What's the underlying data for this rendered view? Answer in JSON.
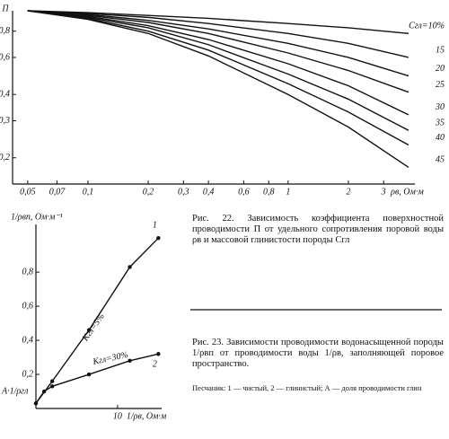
{
  "chart_data": [
    {
      "type": "line",
      "xlog": true,
      "ylog": true,
      "ylabel": "П",
      "xlabel": "ρв, Ом·м",
      "xlim": [
        0.042,
        4.3
      ],
      "ylim": [
        0.15,
        1
      ],
      "xticks": [
        {
          "value": 0.05,
          "label": "0,05"
        },
        {
          "value": 0.07,
          "label": "0,07"
        },
        {
          "value": 0.1,
          "label": "0,1"
        },
        {
          "value": 0.2,
          "label": "0,2"
        },
        {
          "value": 0.3,
          "label": "0,3"
        },
        {
          "value": 0.4,
          "label": "0,4"
        },
        {
          "value": 0.6,
          "label": "0,6"
        },
        {
          "value": 0.8,
          "label": "0,8"
        },
        1,
        2,
        3
      ],
      "yticks": [
        {
          "value": 0.2,
          "label": "0,2"
        },
        {
          "value": 0.3,
          "label": "0,3"
        },
        {
          "value": 0.4,
          "label": "0,4"
        },
        {
          "value": 0.6,
          "label": "0,6"
        },
        {
          "value": 0.8,
          "label": "0,8"
        }
      ],
      "x": [
        0.05,
        0.1,
        0.2,
        0.4,
        1,
        2,
        4
      ],
      "series": [
        {
          "name": "Сгл=10%",
          "color": "#111",
          "values": [
            1,
            0.98,
            0.95,
            0.92,
            0.87,
            0.83,
            0.78
          ]
        },
        {
          "name": "15",
          "color": "#111",
          "values": [
            1,
            0.97,
            0.93,
            0.87,
            0.78,
            0.7,
            0.6
          ]
        },
        {
          "name": "20",
          "color": "#111",
          "values": [
            1,
            0.96,
            0.9,
            0.82,
            0.7,
            0.6,
            0.49
          ]
        },
        {
          "name": "25",
          "color": "#111",
          "values": [
            1,
            0.95,
            0.88,
            0.78,
            0.63,
            0.52,
            0.41
          ]
        },
        {
          "name": "30",
          "color": "#111",
          "values": [
            1,
            0.94,
            0.85,
            0.73,
            0.56,
            0.44,
            0.32
          ]
        },
        {
          "name": "35",
          "color": "#111",
          "values": [
            1,
            0.93,
            0.83,
            0.69,
            0.5,
            0.38,
            0.27
          ]
        },
        {
          "name": "40",
          "color": "#111",
          "values": [
            1,
            0.92,
            0.8,
            0.65,
            0.45,
            0.33,
            0.23
          ]
        },
        {
          "name": "45",
          "color": "#111",
          "values": [
            1,
            0.91,
            0.78,
            0.61,
            0.4,
            0.28,
            0.18
          ]
        }
      ]
    },
    {
      "type": "line",
      "markers": true,
      "ylabel": "1/ρвп, Ом·м⁻¹",
      "xlabel": "1/ρв, Ом·м",
      "xlim": [
        0,
        15.4
      ],
      "ylim": [
        0,
        1.08
      ],
      "xticks": [
        10
      ],
      "yticks": [
        {
          "value": 0.2,
          "label": "0,2"
        },
        {
          "value": 0.4,
          "label": "0,4"
        },
        {
          "value": 0.6,
          "label": "0,6"
        },
        {
          "value": 0.8,
          "label": "0,8"
        }
      ],
      "annotations": [
        "Kгл=5%",
        "Kгл=30%",
        "A·1/ρгл"
      ],
      "series": [
        {
          "name": "1",
          "color": "#111",
          "x": [
            0,
            2,
            6.5,
            11.5,
            15
          ],
          "values": [
            0.03,
            0.16,
            0.46,
            0.83,
            1.0
          ]
        },
        {
          "name": "2",
          "color": "#111",
          "x": [
            0,
            1,
            2,
            6.5,
            11.5,
            15
          ],
          "values": [
            0.03,
            0.1,
            0.13,
            0.2,
            0.28,
            0.32
          ]
        }
      ]
    }
  ],
  "captions": [
    "Рис. 22. Зависимость коэффициента поверхностной проводимости П от удельного сопротивления поровой воды ρв и массовой глинистости породы Сгл",
    "Рис. 23. Зависимости проводимости водонасыщенной породы 1/ρвп от проводимости воды 1/ρв, заполняющей поровое пространство.",
    "Песчаник: 1 — чистый, 2 — глинистый; А — доля проводимости глин"
  ]
}
